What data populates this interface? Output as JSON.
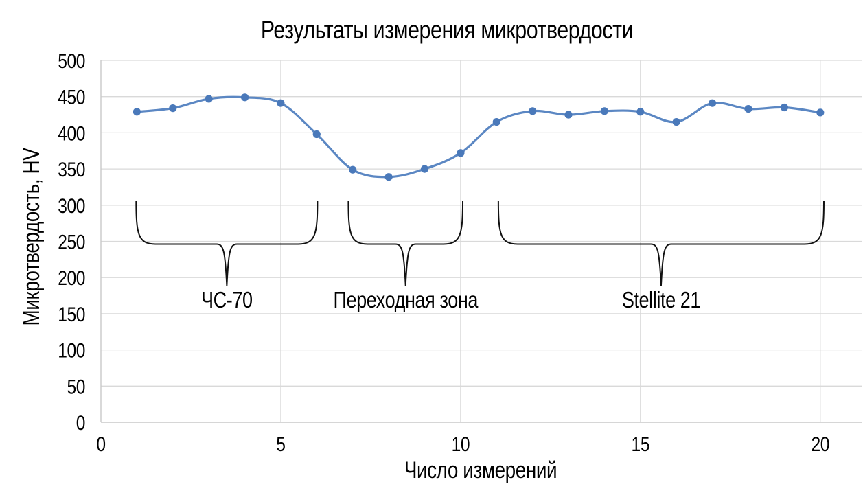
{
  "page": {
    "background": "#ffffff",
    "text_color": "#000000"
  },
  "chart_data": {
    "type": "line",
    "title": "Результаты измерения микротвердости",
    "xlabel": "Число измерений",
    "ylabel": "Микротвердость, HV",
    "x": [
      1,
      2,
      3,
      4,
      5,
      6,
      7,
      8,
      9,
      10,
      11,
      12,
      13,
      14,
      15,
      16,
      17,
      18,
      19,
      20
    ],
    "series": [
      {
        "values": [
          429,
          434,
          447,
          449,
          441,
          398,
          349,
          339,
          350,
          372,
          415,
          430,
          425,
          430,
          429,
          415,
          441,
          433,
          435,
          428
        ]
      }
    ],
    "xlim": [
      0,
      21.15
    ],
    "ylim": [
      0,
      500
    ],
    "xticks": [
      0,
      5,
      10,
      15,
      20
    ],
    "ytick_step": 50,
    "grid": true,
    "legend_position": "none",
    "smooth_line": true,
    "marker": "circle",
    "annotations": [
      {
        "label": "ЧС-70",
        "from_x": 0.98,
        "to_x": 6.02
      },
      {
        "label": "Переходная зона",
        "from_x": 6.88,
        "to_x": 10.06
      },
      {
        "label": "Stellite 21",
        "from_x": 11.05,
        "to_x": 20.1
      }
    ],
    "colors": {
      "line": "#5b87c3",
      "marker": "#4a79ba",
      "gridline": "#d9d9d9",
      "axis_line": "#c9c9c9",
      "brace": "#111111",
      "text": "#000000"
    }
  }
}
